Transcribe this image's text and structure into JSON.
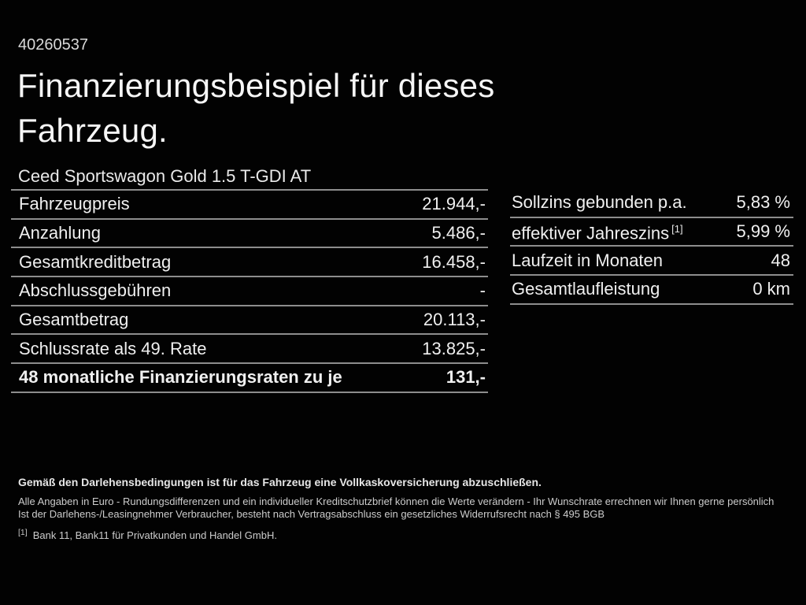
{
  "page": {
    "listing_id": "40260537",
    "title_line1": "Finanzierungsbeispiel für dieses",
    "title_line2": "Fahrzeug.",
    "vehicle_name": "Ceed Sportswagon Gold 1.5 T-GDI AT"
  },
  "left_table": {
    "rows": [
      {
        "label": "Fahrzeugpreis",
        "value": "21.944,-"
      },
      {
        "label": "Anzahlung",
        "value": "5.486,-"
      },
      {
        "label": "Gesamtkreditbetrag",
        "value": "16.458,-"
      },
      {
        "label": "Abschlussgebühren",
        "value": "-"
      },
      {
        "label": "Gesamtbetrag",
        "value": "20.113,-"
      },
      {
        "label": "Schlussrate als 49. Rate",
        "value": "13.825,-"
      },
      {
        "label": "48 monatliche Finanzierungsraten zu je",
        "value": "131,-"
      }
    ]
  },
  "right_table": {
    "rows": [
      {
        "label": "Sollzins gebunden p.a.",
        "value": "5,83 %"
      },
      {
        "label": "effektiver Jahreszins",
        "sup": "[1]",
        "value": "5,99 %"
      },
      {
        "label": "Laufzeit in Monaten",
        "value": "48"
      },
      {
        "label": "Gesamtlaufleistung",
        "value": "0 km"
      }
    ]
  },
  "footer": {
    "insurance_note": "Gemäß den Darlehensbedingungen ist für das Fahrzeug eine Vollkaskoversicherung abzuschließen.",
    "disclaimer_line1": "Alle Angaben in Euro - Rundungsdifferenzen und ein individueller Kreditschutzbrief können die Werte verändern - Ihr Wunschrate errechnen wir Ihnen gerne persönlich",
    "disclaimer_line2": "Ist der Darlehens-/Leasingnehmer Verbraucher, besteht nach Vertragsabschluss ein gesetzliches Widerrufsrecht nach § 495 BGB",
    "footnote_marker": "[1]",
    "footnote_text": "Bank 11, Bank11 für Privatkunden und Handel GmbH."
  },
  "colors": {
    "background": "#020202",
    "text_primary": "#f0f0f0",
    "text_secondary": "#cccccc",
    "divider": "#8d8d8d"
  }
}
